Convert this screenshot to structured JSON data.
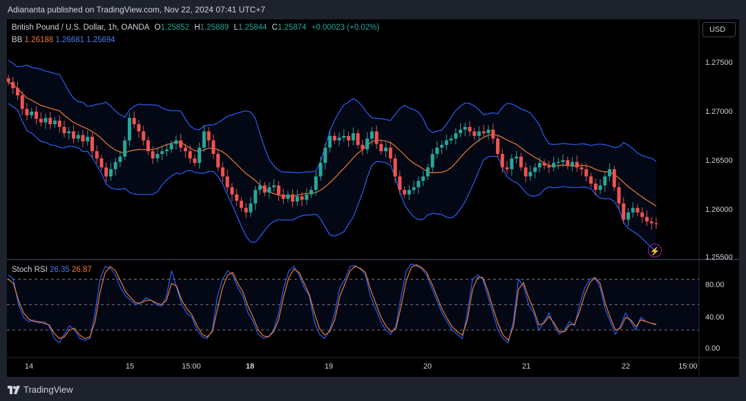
{
  "header": {
    "published": "Adiananta published on TradingView.com, Nov 22, 2024 07:41 UTC+7"
  },
  "legend": {
    "symbol": "British Pound / U.S. Dollar, 1h, OANDA",
    "o_label": "O",
    "o": "1.25852",
    "h_label": "H",
    "h": "1.25889",
    "l_label": "L",
    "l": "1.25844",
    "c_label": "C",
    "c": "1.25874",
    "change": "+0.00023 (+0.02%)"
  },
  "bb": {
    "label": "BB",
    "mid": "1.26188",
    "upper": "1.26681",
    "lower": "1.25694"
  },
  "rsi": {
    "label": "Stoch RSI",
    "k": "26.35",
    "d": "26.87"
  },
  "currency": "USD",
  "price_axis": [
    "1.27500",
    "1.27000",
    "1.26500",
    "1.26000",
    "1.25500"
  ],
  "rsi_axis": [
    "80.00",
    "40.00",
    "0.00"
  ],
  "time_axis": [
    {
      "label": "14",
      "bold": false
    },
    {
      "label": "15",
      "bold": false
    },
    {
      "label": "15:00",
      "bold": false
    },
    {
      "label": "18",
      "bold": true
    },
    {
      "label": "19",
      "bold": false
    },
    {
      "label": "20",
      "bold": false
    },
    {
      "label": "21",
      "bold": false
    },
    {
      "label": "22",
      "bold": false
    },
    {
      "label": "15:00",
      "bold": false
    }
  ],
  "footer": {
    "brand": "TradingView"
  },
  "colors": {
    "up": "#26a69a",
    "down": "#ef5350",
    "bb_band": "#2962ff",
    "bb_mid": "#f57c32",
    "k": "#2962ff",
    "d": "#f57c32"
  },
  "chart_data": [
    {
      "type": "candlestick",
      "title": "British Pound / U.S. Dollar, 1h, OANDA",
      "ylim": [
        1.2545,
        1.2795
      ],
      "series_close": [
        1.2745,
        1.2738,
        1.273,
        1.2715,
        1.2708,
        1.2712,
        1.2704,
        1.27,
        1.2705,
        1.2698,
        1.2702,
        1.2695,
        1.2688,
        1.269,
        1.2682,
        1.2686,
        1.2679,
        1.2684,
        1.2668,
        1.266,
        1.265,
        1.264,
        1.2648,
        1.2656,
        1.2662,
        1.268,
        1.2705,
        1.2698,
        1.269,
        1.268,
        1.2668,
        1.266,
        1.2665,
        1.2668,
        1.267,
        1.2676,
        1.268,
        1.2672,
        1.2668,
        1.266,
        1.2655,
        1.2672,
        1.269,
        1.268,
        1.2665,
        1.265,
        1.264,
        1.2628,
        1.262,
        1.2613,
        1.2605,
        1.26,
        1.261,
        1.2625,
        1.263,
        1.2622,
        1.2628,
        1.263,
        1.262,
        1.2615,
        1.262,
        1.2612,
        1.2618,
        1.2614,
        1.262,
        1.2625,
        1.264,
        1.2655,
        1.2672,
        1.2685,
        1.268,
        1.2683,
        1.2685,
        1.268,
        1.2688,
        1.2675,
        1.267,
        1.2682,
        1.269,
        1.2676,
        1.2668,
        1.2672,
        1.266,
        1.264,
        1.2625,
        1.262,
        1.2625,
        1.2628,
        1.2635,
        1.264,
        1.265,
        1.2665,
        1.2672,
        1.2675,
        1.268,
        1.2682,
        1.2688,
        1.2692,
        1.2695,
        1.269,
        1.2685,
        1.269,
        1.2688,
        1.2692,
        1.2682,
        1.2665,
        1.265,
        1.2648,
        1.266,
        1.2662,
        1.265,
        1.264,
        1.2645,
        1.265,
        1.2655,
        1.2652,
        1.265,
        1.2655,
        1.2656,
        1.2658,
        1.2652,
        1.2656,
        1.265,
        1.2648,
        1.264,
        1.2632,
        1.2625,
        1.263,
        1.264,
        1.2648,
        1.2628,
        1.261,
        1.2592,
        1.26,
        1.2605,
        1.26,
        1.2595,
        1.259,
        1.2588,
        1.2587
      ]
    },
    {
      "type": "line",
      "title": "Stoch RSI",
      "ylim": [
        -10,
        100
      ],
      "series": [
        {
          "name": "26.35",
          "values": [
            85,
            80,
            50,
            35,
            30,
            32,
            28,
            30,
            25,
            10,
            5,
            15,
            25,
            20,
            10,
            8,
            10,
            40,
            80,
            95,
            93,
            85,
            70,
            60,
            55,
            50,
            52,
            58,
            55,
            50,
            48,
            60,
            90,
            70,
            50,
            40,
            35,
            20,
            12,
            10,
            20,
            60,
            80,
            90,
            85,
            70,
            60,
            40,
            30,
            15,
            10,
            12,
            20,
            40,
            70,
            90,
            95,
            85,
            70,
            60,
            30,
            15,
            10,
            20,
            40,
            70,
            80,
            95,
            96,
            92,
            85,
            60,
            45,
            30,
            20,
            15,
            25,
            60,
            90,
            98,
            96,
            92,
            85,
            70,
            55,
            40,
            30,
            20,
            15,
            10,
            40,
            80,
            85,
            80,
            60,
            40,
            20,
            10,
            5,
            30,
            80,
            72,
            50,
            40,
            20,
            30,
            40,
            25,
            15,
            20,
            30,
            25,
            50,
            70,
            80,
            82,
            70,
            45,
            30,
            15,
            25,
            40,
            30,
            20,
            35,
            30,
            28,
            26
          ]
        },
        {
          "name": "26.87",
          "values": [
            80,
            75,
            55,
            40,
            33,
            30,
            30,
            28,
            26,
            16,
            10,
            12,
            20,
            22,
            14,
            10,
            12,
            30,
            65,
            88,
            95,
            90,
            78,
            65,
            58,
            52,
            52,
            55,
            55,
            52,
            50,
            55,
            75,
            72,
            55,
            45,
            38,
            25,
            15,
            12,
            18,
            45,
            70,
            85,
            88,
            75,
            65,
            48,
            35,
            20,
            13,
            12,
            18,
            32,
            60,
            82,
            92,
            88,
            75,
            62,
            40,
            22,
            14,
            18,
            32,
            60,
            75,
            90,
            95,
            93,
            88,
            68,
            52,
            36,
            25,
            18,
            22,
            48,
            78,
            94,
            97,
            94,
            88,
            75,
            60,
            45,
            34,
            24,
            18,
            14,
            32,
            68,
            82,
            82,
            66,
            46,
            28,
            14,
            8,
            24,
            68,
            76,
            58,
            44,
            26,
            28,
            36,
            28,
            18,
            18,
            26,
            27,
            42,
            62,
            76,
            82,
            75,
            52,
            35,
            20,
            22,
            35,
            32,
            24,
            32,
            30,
            28,
            27
          ]
        }
      ]
    }
  ]
}
